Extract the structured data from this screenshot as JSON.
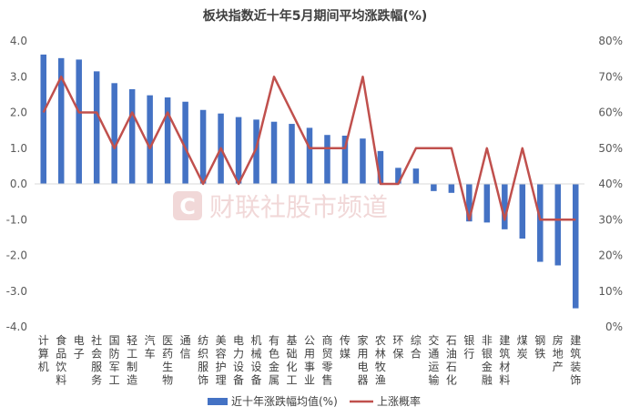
{
  "chart_data": {
    "type": "bar",
    "title": "板块指数近十年5月期间平均涨跌幅(%)",
    "categories": [
      "计算机",
      "食品饮料",
      "电子",
      "社会服务",
      "国防军工",
      "轻工制造",
      "汽车",
      "医药生物",
      "通信",
      "纺织服饰",
      "美容护理",
      "电力设备",
      "机械设备",
      "有色金属",
      "基础化工",
      "公用事业",
      "商贸零售",
      "传媒",
      "家用电器",
      "农林牧渔",
      "环保",
      "综合",
      "交通运输",
      "石油石化",
      "银行",
      "非银金融",
      "建筑材料",
      "煤炭",
      "钢铁",
      "房地产",
      "建筑装饰"
    ],
    "series": [
      {
        "name": "近十年涨跌幅均值(%)",
        "type": "bar",
        "axis": "left",
        "color": "#4472c4",
        "values": [
          3.62,
          3.52,
          3.48,
          3.15,
          2.82,
          2.65,
          2.48,
          2.42,
          2.3,
          2.07,
          1.97,
          1.87,
          1.8,
          1.74,
          1.68,
          1.57,
          1.37,
          1.35,
          1.27,
          0.92,
          0.45,
          0.43,
          -0.2,
          -0.25,
          -1.05,
          -1.08,
          -1.27,
          -1.53,
          -2.18,
          -2.28,
          -3.48
        ]
      },
      {
        "name": "上涨概率",
        "type": "line",
        "axis": "right",
        "color": "#c0504d",
        "values": [
          60,
          70,
          60,
          60,
          50,
          60,
          50,
          60,
          50,
          40,
          50,
          40,
          50,
          70,
          60,
          50,
          50,
          50,
          70,
          40,
          40,
          50,
          50,
          50,
          30,
          50,
          30,
          50,
          30,
          30,
          30
        ]
      }
    ],
    "y_left": {
      "min": -4.0,
      "max": 4.0,
      "step": 1.0,
      "ticks": [
        "4.0",
        "3.0",
        "2.0",
        "1.0",
        "0.0",
        "-1.0",
        "-2.0",
        "-3.0",
        "-4.0"
      ]
    },
    "y_right": {
      "min": 0,
      "max": 80,
      "step": 10,
      "ticks": [
        "80%",
        "70%",
        "60%",
        "50%",
        "40%",
        "30%",
        "20%",
        "10%",
        "0%"
      ]
    },
    "legend_position": "bottom",
    "grid": false
  },
  "legend": {
    "bar_label": "近十年涨跌幅均值(%)",
    "line_label": "上涨概率"
  },
  "watermark": {
    "logo": "C",
    "text": "财联社股市频道"
  }
}
